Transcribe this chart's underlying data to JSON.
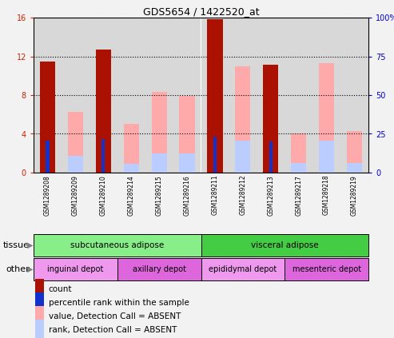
{
  "title": "GDS5654 / 1422520_at",
  "samples": [
    "GSM1289208",
    "GSM1289209",
    "GSM1289210",
    "GSM1289214",
    "GSM1289215",
    "GSM1289216",
    "GSM1289211",
    "GSM1289212",
    "GSM1289213",
    "GSM1289217",
    "GSM1289218",
    "GSM1289219"
  ],
  "count_values": [
    11.5,
    0,
    12.7,
    0,
    0,
    0,
    15.8,
    0,
    11.1,
    0,
    0,
    0
  ],
  "percentile_rank": [
    3.3,
    0,
    3.5,
    0,
    0,
    0,
    3.7,
    0,
    3.2,
    0,
    0,
    0
  ],
  "absent_value": [
    0,
    6.3,
    0,
    5.0,
    8.3,
    7.9,
    0,
    11.0,
    0,
    4.0,
    11.3,
    4.3
  ],
  "absent_rank": [
    0,
    1.7,
    0,
    0.9,
    2.0,
    2.0,
    0,
    3.3,
    0,
    1.0,
    3.3,
    1.0
  ],
  "ylim_left": [
    0,
    16
  ],
  "ylim_right": [
    0,
    100
  ],
  "yticks_left": [
    0,
    4,
    8,
    12,
    16
  ],
  "yticks_right": [
    0,
    25,
    50,
    75,
    100
  ],
  "color_count": "#aa1100",
  "color_percentile": "#1133cc",
  "color_absent_value": "#ffaaaa",
  "color_absent_rank": "#bbccff",
  "tissue_groups": [
    {
      "label": "subcutaneous adipose",
      "start": 0,
      "end": 6,
      "color": "#88ee88"
    },
    {
      "label": "visceral adipose",
      "start": 6,
      "end": 12,
      "color": "#44cc44"
    }
  ],
  "other_groups": [
    {
      "label": "inguinal depot",
      "start": 0,
      "end": 3,
      "color": "#ee99ee"
    },
    {
      "label": "axillary depot",
      "start": 3,
      "end": 6,
      "color": "#dd66dd"
    },
    {
      "label": "epididymal depot",
      "start": 6,
      "end": 9,
      "color": "#ee99ee"
    },
    {
      "label": "mesenteric depot",
      "start": 9,
      "end": 12,
      "color": "#dd66dd"
    }
  ],
  "bar_width": 0.55,
  "col_bg": "#d8d8d8",
  "plot_bg": "#ffffff",
  "fig_bg": "#f2f2f2",
  "label_tissue": "tissue",
  "label_other": "other",
  "legend_items": [
    {
      "color": "#aa1100",
      "label": "count"
    },
    {
      "color": "#1133cc",
      "label": "percentile rank within the sample"
    },
    {
      "color": "#ffaaaa",
      "label": "value, Detection Call = ABSENT"
    },
    {
      "color": "#bbccff",
      "label": "rank, Detection Call = ABSENT"
    }
  ]
}
